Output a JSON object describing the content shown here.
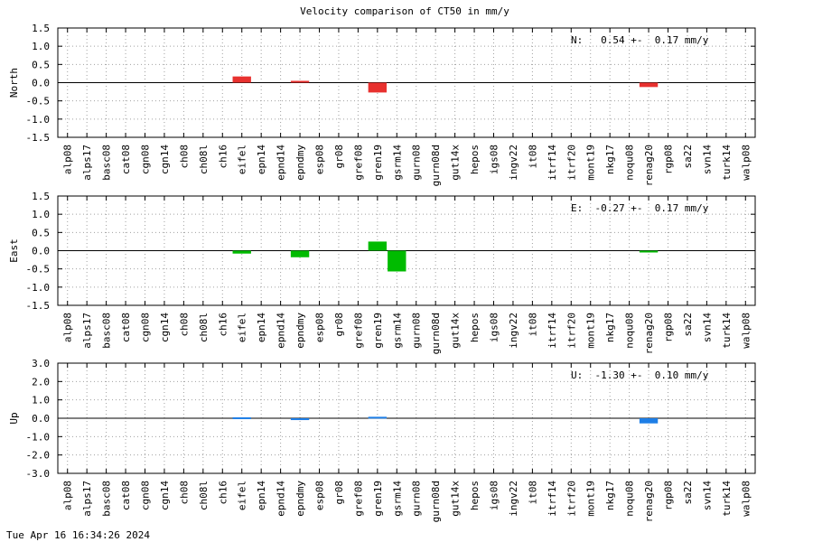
{
  "page": {
    "timestamp": "Tue Apr 16 16:34:26 2024"
  },
  "chart_data": [
    {
      "type": "bar",
      "title": "Velocity comparison of CT50 in mm/y",
      "ylabel": "North",
      "ylim": [
        -1.5,
        1.5
      ],
      "yticks": [
        "1.5",
        "1.0",
        "0.5",
        "0.0",
        "-0.5",
        "-1.0",
        "-1.5"
      ],
      "grid": true,
      "color": "#e8312f",
      "annotation": "N:   0.54 +-  0.17 mm/y",
      "categories": [
        "alp08",
        "alps17",
        "basc08",
        "cat08",
        "cgn08",
        "cgn14",
        "ch08",
        "ch08l",
        "ch16",
        "eifel",
        "epn14",
        "epnd14",
        "epndmy",
        "esp08",
        "gr08",
        "gref08",
        "gren19",
        "gsrm14",
        "gurn08",
        "gurn08d",
        "gut14x",
        "hepos",
        "igs08",
        "ingv22",
        "it08",
        "itrf14",
        "itrf20",
        "mont19",
        "nkg17",
        "noqu08",
        "renag20",
        "rgp08",
        "sa22",
        "svn14",
        "turk14",
        "walp08"
      ],
      "values": [
        0,
        0,
        0,
        0,
        0,
        0,
        0,
        0,
        0,
        0.17,
        0,
        0,
        0.05,
        0,
        0,
        0,
        -0.27,
        0,
        0,
        0,
        0,
        0,
        0,
        0,
        0,
        0,
        0,
        0,
        0,
        0,
        -0.12,
        0,
        0,
        0,
        0,
        0
      ]
    },
    {
      "type": "bar",
      "title": "",
      "ylabel": "East",
      "ylim": [
        -1.5,
        1.5
      ],
      "yticks": [
        "1.5",
        "1.0",
        "0.5",
        "0.0",
        "-0.5",
        "-1.0",
        "-1.5"
      ],
      "grid": true,
      "color": "#00bb00",
      "annotation": "E:  -0.27 +-  0.17 mm/y",
      "categories": [
        "alp08",
        "alps17",
        "basc08",
        "cat08",
        "cgn08",
        "cgn14",
        "ch08",
        "ch08l",
        "ch16",
        "eifel",
        "epn14",
        "epnd14",
        "epndmy",
        "esp08",
        "gr08",
        "gref08",
        "gren19",
        "gsrm14",
        "gurn08",
        "gurn08d",
        "gut14x",
        "hepos",
        "igs08",
        "ingv22",
        "it08",
        "itrf14",
        "itrf20",
        "mont19",
        "nkg17",
        "noqu08",
        "renag20",
        "rgp08",
        "sa22",
        "svn14",
        "turk14",
        "walp08"
      ],
      "values": [
        0,
        0,
        0,
        0,
        0,
        0,
        0,
        0,
        0,
        -0.08,
        0,
        0,
        -0.18,
        0,
        0,
        0,
        0.25,
        -0.57,
        0,
        0,
        0,
        0,
        0,
        0,
        0,
        0,
        0,
        0,
        0,
        0,
        -0.03,
        0,
        0,
        0,
        0,
        0
      ]
    },
    {
      "type": "bar",
      "title": "",
      "ylabel": "Up",
      "ylim": [
        -3.0,
        3.0
      ],
      "yticks": [
        "3.0",
        "2.0",
        "1.0",
        "0.0",
        "-1.0",
        "-2.0",
        "-3.0"
      ],
      "grid": true,
      "color": "#1e7ee6",
      "annotation": "U:  -1.30 +-  0.10 mm/y",
      "categories": [
        "alp08",
        "alps17",
        "basc08",
        "cat08",
        "cgn08",
        "cgn14",
        "ch08",
        "ch08l",
        "ch16",
        "eifel",
        "epn14",
        "epnd14",
        "epndmy",
        "esp08",
        "gr08",
        "gref08",
        "gren19",
        "gsrm14",
        "gurn08",
        "gurn08d",
        "gut14x",
        "hepos",
        "igs08",
        "ingv22",
        "it08",
        "itrf14",
        "itrf20",
        "mont19",
        "nkg17",
        "noqu08",
        "renag20",
        "rgp08",
        "sa22",
        "svn14",
        "turk14",
        "walp08"
      ],
      "values": [
        0,
        0,
        0,
        0,
        0,
        0,
        0,
        0,
        0,
        0.05,
        0,
        0,
        -0.1,
        0,
        0,
        0,
        0.08,
        0,
        0,
        0,
        0,
        0,
        0,
        0,
        0,
        0,
        0,
        0,
        0,
        0,
        -0.28,
        0,
        0,
        0,
        0,
        0
      ]
    }
  ]
}
